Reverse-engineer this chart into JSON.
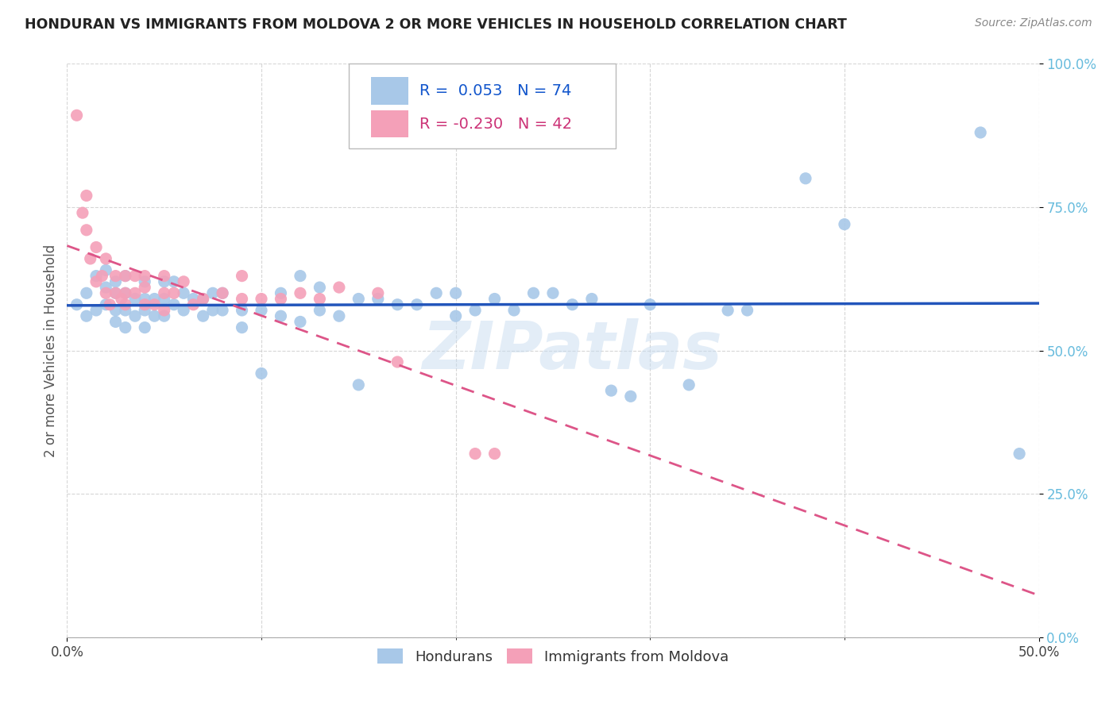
{
  "title": "HONDURAN VS IMMIGRANTS FROM MOLDOVA 2 OR MORE VEHICLES IN HOUSEHOLD CORRELATION CHART",
  "source": "Source: ZipAtlas.com",
  "ylabel_label": "2 or more Vehicles in Household",
  "xmin": 0.0,
  "xmax": 0.5,
  "ymin": 0.0,
  "ymax": 1.0,
  "legend_label1": "Hondurans",
  "legend_label2": "Immigrants from Moldova",
  "r1": 0.053,
  "n1": 74,
  "r2": -0.23,
  "n2": 42,
  "blue_color": "#A8C8E8",
  "pink_color": "#F4A0B8",
  "line_blue": "#2255BB",
  "line_pink": "#DD5588",
  "watermark_color": "#C8DCF0",
  "blue_scatter_x": [
    0.005,
    0.01,
    0.01,
    0.015,
    0.015,
    0.02,
    0.02,
    0.02,
    0.025,
    0.025,
    0.025,
    0.025,
    0.03,
    0.03,
    0.03,
    0.03,
    0.035,
    0.035,
    0.04,
    0.04,
    0.04,
    0.04,
    0.045,
    0.045,
    0.05,
    0.05,
    0.05,
    0.055,
    0.055,
    0.06,
    0.06,
    0.065,
    0.07,
    0.07,
    0.075,
    0.075,
    0.08,
    0.08,
    0.09,
    0.09,
    0.1,
    0.1,
    0.11,
    0.11,
    0.12,
    0.12,
    0.13,
    0.13,
    0.14,
    0.15,
    0.15,
    0.16,
    0.17,
    0.18,
    0.19,
    0.2,
    0.2,
    0.21,
    0.22,
    0.23,
    0.24,
    0.25,
    0.26,
    0.27,
    0.28,
    0.29,
    0.3,
    0.32,
    0.34,
    0.35,
    0.38,
    0.4,
    0.47,
    0.49
  ],
  "blue_scatter_y": [
    0.58,
    0.56,
    0.6,
    0.57,
    0.63,
    0.58,
    0.61,
    0.64,
    0.55,
    0.57,
    0.6,
    0.62,
    0.54,
    0.57,
    0.6,
    0.63,
    0.56,
    0.59,
    0.54,
    0.57,
    0.59,
    0.62,
    0.56,
    0.59,
    0.56,
    0.59,
    0.62,
    0.58,
    0.62,
    0.57,
    0.6,
    0.59,
    0.56,
    0.59,
    0.57,
    0.6,
    0.57,
    0.6,
    0.54,
    0.57,
    0.46,
    0.57,
    0.56,
    0.6,
    0.55,
    0.63,
    0.57,
    0.61,
    0.56,
    0.44,
    0.59,
    0.59,
    0.58,
    0.58,
    0.6,
    0.56,
    0.6,
    0.57,
    0.59,
    0.57,
    0.6,
    0.6,
    0.58,
    0.59,
    0.43,
    0.42,
    0.58,
    0.44,
    0.57,
    0.57,
    0.8,
    0.72,
    0.88,
    0.32
  ],
  "pink_scatter_x": [
    0.005,
    0.008,
    0.01,
    0.01,
    0.012,
    0.015,
    0.015,
    0.018,
    0.02,
    0.02,
    0.022,
    0.025,
    0.025,
    0.028,
    0.03,
    0.03,
    0.03,
    0.035,
    0.035,
    0.04,
    0.04,
    0.04,
    0.045,
    0.05,
    0.05,
    0.05,
    0.055,
    0.06,
    0.065,
    0.07,
    0.08,
    0.09,
    0.09,
    0.1,
    0.11,
    0.12,
    0.13,
    0.14,
    0.16,
    0.17,
    0.21,
    0.22
  ],
  "pink_scatter_y": [
    0.91,
    0.74,
    0.71,
    0.77,
    0.66,
    0.62,
    0.68,
    0.63,
    0.6,
    0.66,
    0.58,
    0.6,
    0.63,
    0.59,
    0.58,
    0.6,
    0.63,
    0.6,
    0.63,
    0.58,
    0.61,
    0.63,
    0.58,
    0.57,
    0.6,
    0.63,
    0.6,
    0.62,
    0.58,
    0.59,
    0.6,
    0.59,
    0.63,
    0.59,
    0.59,
    0.6,
    0.59,
    0.61,
    0.6,
    0.48,
    0.32,
    0.32
  ]
}
